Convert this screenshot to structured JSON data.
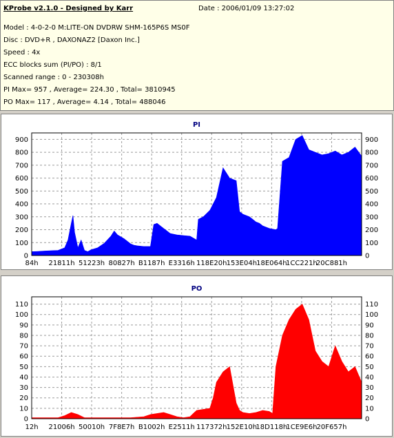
{
  "header": {
    "title": "KProbe v2.1.0 - Designed by Karr",
    "date": "Date : 2006/01/09 13:27:02",
    "lines": [
      "Model : 4-0-2-0 M:LITE-ON DVDRW SHM-165P6S MS0F",
      "Disc : DVD+R , DAXONAZ2 [Daxon Inc.]",
      "Speed : 4x",
      "ECC blocks sum (PI/PO) : 8/1",
      "Scanned range : 0 - 230308h",
      "PI Max= 957 , Average= 224.30 , Total= 3810945",
      "PO Max= 117 , Average= 4.14 , Total= 488046"
    ]
  },
  "colors": {
    "pi": "#0000ff",
    "po": "#ff0000",
    "grid": "#9a9a9a",
    "title": "#000080"
  },
  "chart_data": [
    {
      "type": "area",
      "title": "PI",
      "ylim": [
        0,
        950
      ],
      "yticks": [
        0,
        100,
        200,
        300,
        400,
        500,
        600,
        700,
        800,
        900
      ],
      "xticks": [
        "84h",
        "21811h",
        "51223h",
        "80827h",
        "B1187h",
        "E3316h",
        "118E20h",
        "153E04h",
        "18E064h",
        "1CC221h",
        "20C881h"
      ],
      "grid": true,
      "x": [
        0,
        2,
        4,
        8,
        10,
        11,
        12,
        12.5,
        13,
        14,
        15,
        16,
        17,
        18,
        20,
        22,
        24,
        25,
        26,
        27,
        28,
        29,
        30,
        31,
        32,
        34,
        36,
        37,
        38,
        40,
        40.5,
        42,
        44,
        46,
        48,
        50,
        50.5,
        52,
        54,
        56,
        58,
        60,
        62,
        63,
        64,
        65,
        66,
        67,
        68,
        69,
        70,
        72,
        74,
        74.5,
        76,
        78,
        80,
        82,
        84,
        86,
        88,
        90,
        92,
        94,
        96,
        98,
        100
      ],
      "y": [
        30,
        32,
        35,
        40,
        60,
        120,
        250,
        310,
        180,
        60,
        120,
        40,
        30,
        45,
        60,
        95,
        150,
        190,
        160,
        145,
        130,
        110,
        90,
        80,
        75,
        70,
        70,
        240,
        250,
        210,
        200,
        170,
        160,
        155,
        150,
        120,
        280,
        300,
        350,
        450,
        680,
        600,
        580,
        340,
        320,
        310,
        300,
        280,
        260,
        250,
        230,
        210,
        200,
        210,
        730,
        760,
        900,
        930,
        820,
        800,
        780,
        790,
        810,
        780,
        800,
        840,
        770
      ]
    },
    {
      "type": "area",
      "title": "PO",
      "ylim": [
        0,
        117
      ],
      "yticks": [
        0,
        10,
        20,
        30,
        40,
        50,
        60,
        70,
        80,
        90,
        100,
        110
      ],
      "xticks": [
        "12h",
        "21006h",
        "50010h",
        "7F8E7h",
        "B1002h",
        "E2511h",
        "117372h",
        "152E10h",
        "18D118h",
        "1CE9E6h",
        "20F657h"
      ],
      "grid": true,
      "x": [
        0,
        8,
        10,
        12,
        14,
        16,
        20,
        30,
        34,
        36,
        38,
        40,
        42,
        44,
        46,
        48,
        49,
        50,
        52,
        54,
        55,
        56,
        57,
        58,
        60,
        62,
        63,
        64,
        66,
        68,
        70,
        72,
        73,
        74,
        76,
        78,
        80,
        82,
        84,
        86,
        88,
        90,
        92,
        94,
        96,
        98,
        100
      ],
      "y": [
        1,
        1,
        3,
        6,
        4,
        1,
        1,
        1,
        2,
        4,
        5,
        6,
        4,
        2,
        1,
        2,
        5,
        8,
        9,
        10,
        20,
        35,
        40,
        45,
        50,
        15,
        8,
        6,
        5,
        6,
        8,
        7,
        5,
        50,
        80,
        95,
        105,
        110,
        95,
        65,
        55,
        50,
        70,
        55,
        45,
        50,
        35
      ]
    }
  ]
}
